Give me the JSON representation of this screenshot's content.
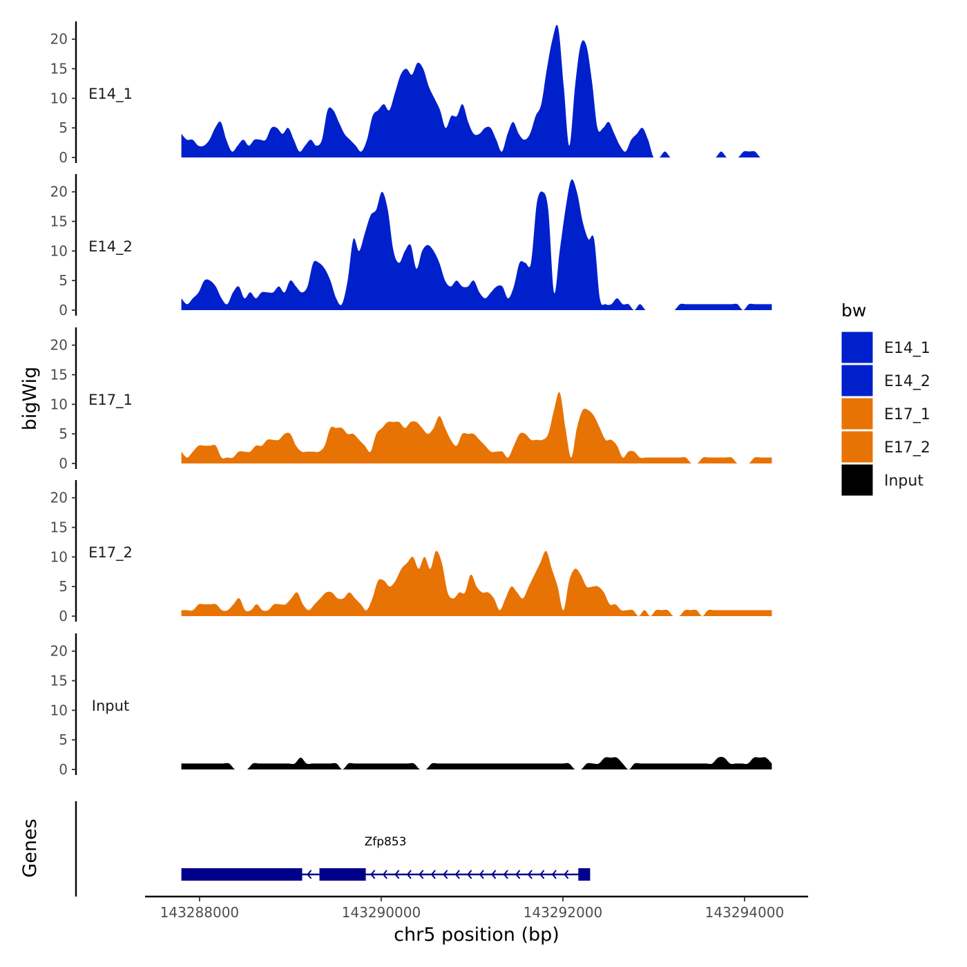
{
  "chart_data": {
    "type": "area",
    "ylabel": "bigWig",
    "xlabel": "chr5 position (bp)",
    "genes_label": "Genes",
    "ylim": [
      0,
      23
    ],
    "yticks": [
      0,
      5,
      10,
      15,
      20
    ],
    "xlim": [
      143287400,
      143294700
    ],
    "xticks": [
      143288000,
      143290000,
      143292000,
      143294000
    ],
    "x_range": [
      143287800,
      143294300
    ],
    "legend": {
      "title": "bw",
      "position": "right",
      "entries": [
        {
          "label": "E14_1",
          "color": "#0020CC"
        },
        {
          "label": "E14_2",
          "color": "#0020CC"
        },
        {
          "label": "E17_1",
          "color": "#E87305"
        },
        {
          "label": "E17_2",
          "color": "#E87305"
        },
        {
          "label": "Input",
          "color": "#000000"
        }
      ]
    },
    "series": [
      {
        "name": "E14_1",
        "color": "#0020CC",
        "values": [
          4,
          3,
          3,
          2,
          2,
          3,
          5,
          6,
          3,
          1,
          2,
          3,
          2,
          3,
          3,
          3,
          5,
          5,
          4,
          5,
          3,
          1,
          2,
          3,
          2,
          3,
          8,
          8,
          6,
          4,
          3,
          2,
          1,
          3,
          7,
          8,
          9,
          8,
          11,
          14,
          15,
          14,
          16,
          15,
          12,
          10,
          8,
          5,
          7,
          7,
          9,
          6,
          4,
          4,
          5,
          5,
          3,
          1,
          4,
          6,
          4,
          3,
          4,
          7,
          9,
          15,
          20,
          22,
          12,
          2,
          12,
          19,
          19,
          13,
          5,
          5,
          6,
          4,
          2,
          1,
          3,
          4,
          5,
          3,
          0,
          0,
          1,
          0,
          0,
          0,
          0,
          0,
          0,
          0,
          0,
          0,
          1,
          0,
          0,
          0,
          1,
          1,
          1,
          0,
          0,
          0
        ]
      },
      {
        "name": "E14_2",
        "color": "#0020CC",
        "values": [
          2,
          1,
          2,
          3,
          5,
          5,
          4,
          2,
          1,
          3,
          4,
          2,
          3,
          2,
          3,
          3,
          3,
          4,
          3,
          5,
          4,
          3,
          4,
          8,
          8,
          7,
          5,
          2,
          1,
          5,
          12,
          10,
          13,
          16,
          17,
          20,
          17,
          10,
          8,
          10,
          11,
          7,
          10,
          11,
          10,
          8,
          5,
          4,
          5,
          4,
          4,
          5,
          3,
          2,
          3,
          4,
          4,
          2,
          4,
          8,
          8,
          8,
          18,
          20,
          17,
          3,
          10,
          17,
          22,
          20,
          15,
          12,
          12,
          2,
          1,
          1,
          2,
          1,
          1,
          0,
          1,
          0,
          0,
          0,
          0,
          0,
          0,
          1,
          1,
          1,
          1,
          1,
          1,
          1,
          1,
          1,
          1,
          1,
          0,
          1,
          1,
          1,
          1,
          1
        ]
      },
      {
        "name": "E17_1",
        "color": "#E87305",
        "values": [
          2,
          1,
          2,
          3,
          3,
          3,
          3,
          1,
          1,
          1,
          2,
          2,
          2,
          3,
          3,
          4,
          4,
          4,
          5,
          5,
          3,
          2,
          2,
          2,
          2,
          3,
          6,
          6,
          6,
          5,
          5,
          4,
          3,
          2,
          5,
          6,
          7,
          7,
          7,
          6,
          7,
          7,
          6,
          5,
          6,
          8,
          6,
          4,
          3,
          5,
          5,
          5,
          4,
          3,
          2,
          2,
          2,
          1,
          3,
          5,
          5,
          4,
          4,
          4,
          5,
          9,
          12,
          6,
          1,
          6,
          9,
          9,
          8,
          6,
          4,
          4,
          3,
          1,
          2,
          2,
          1,
          1,
          1,
          1,
          1,
          1,
          1,
          1,
          1,
          0,
          0,
          1,
          1,
          1,
          1,
          1,
          1,
          0,
          0,
          0,
          1,
          1,
          1,
          1
        ]
      },
      {
        "name": "E17_2",
        "color": "#E87305",
        "values": [
          1,
          1,
          1,
          2,
          2,
          2,
          2,
          1,
          1,
          2,
          3,
          1,
          1,
          2,
          1,
          1,
          2,
          2,
          2,
          3,
          4,
          2,
          1,
          2,
          3,
          4,
          4,
          3,
          3,
          4,
          3,
          2,
          1,
          3,
          6,
          6,
          5,
          6,
          8,
          9,
          10,
          8,
          10,
          8,
          11,
          9,
          4,
          3,
          4,
          4,
          7,
          5,
          4,
          4,
          3,
          1,
          3,
          5,
          4,
          3,
          5,
          7,
          9,
          11,
          8,
          5,
          1,
          6,
          8,
          7,
          5,
          5,
          5,
          4,
          2,
          2,
          1,
          1,
          1,
          0,
          1,
          0,
          1,
          1,
          1,
          0,
          0,
          1,
          1,
          1,
          0,
          1,
          1,
          1,
          1,
          1,
          1,
          1,
          1,
          1,
          1,
          1,
          1
        ]
      },
      {
        "name": "Input",
        "color": "#000000",
        "values": [
          1,
          1,
          1,
          1,
          1,
          1,
          1,
          1,
          1,
          0,
          0,
          0,
          1,
          1,
          1,
          1,
          1,
          1,
          1,
          1,
          2,
          1,
          1,
          1,
          1,
          1,
          1,
          0,
          1,
          1,
          1,
          1,
          1,
          1,
          1,
          1,
          1,
          1,
          1,
          1,
          0,
          0,
          1,
          1,
          1,
          1,
          1,
          1,
          1,
          1,
          1,
          1,
          1,
          1,
          1,
          1,
          1,
          1,
          1,
          1,
          1,
          1,
          1,
          1,
          1,
          1,
          0,
          0,
          1,
          1,
          1,
          2,
          2,
          2,
          1,
          0,
          1,
          1,
          1,
          1,
          1,
          1,
          1,
          1,
          1,
          1,
          1,
          1,
          1,
          1,
          2,
          2,
          1,
          1,
          1,
          1,
          2,
          2,
          2,
          1
        ]
      }
    ],
    "gene": {
      "name": "Zfp853",
      "strand": "-",
      "start": 143287800,
      "end": 143292300,
      "exons": [
        {
          "start": 143287800,
          "end": 143289130
        },
        {
          "start": 143289320,
          "end": 143289830
        },
        {
          "start": 143292170,
          "end": 143292300
        }
      ]
    }
  }
}
